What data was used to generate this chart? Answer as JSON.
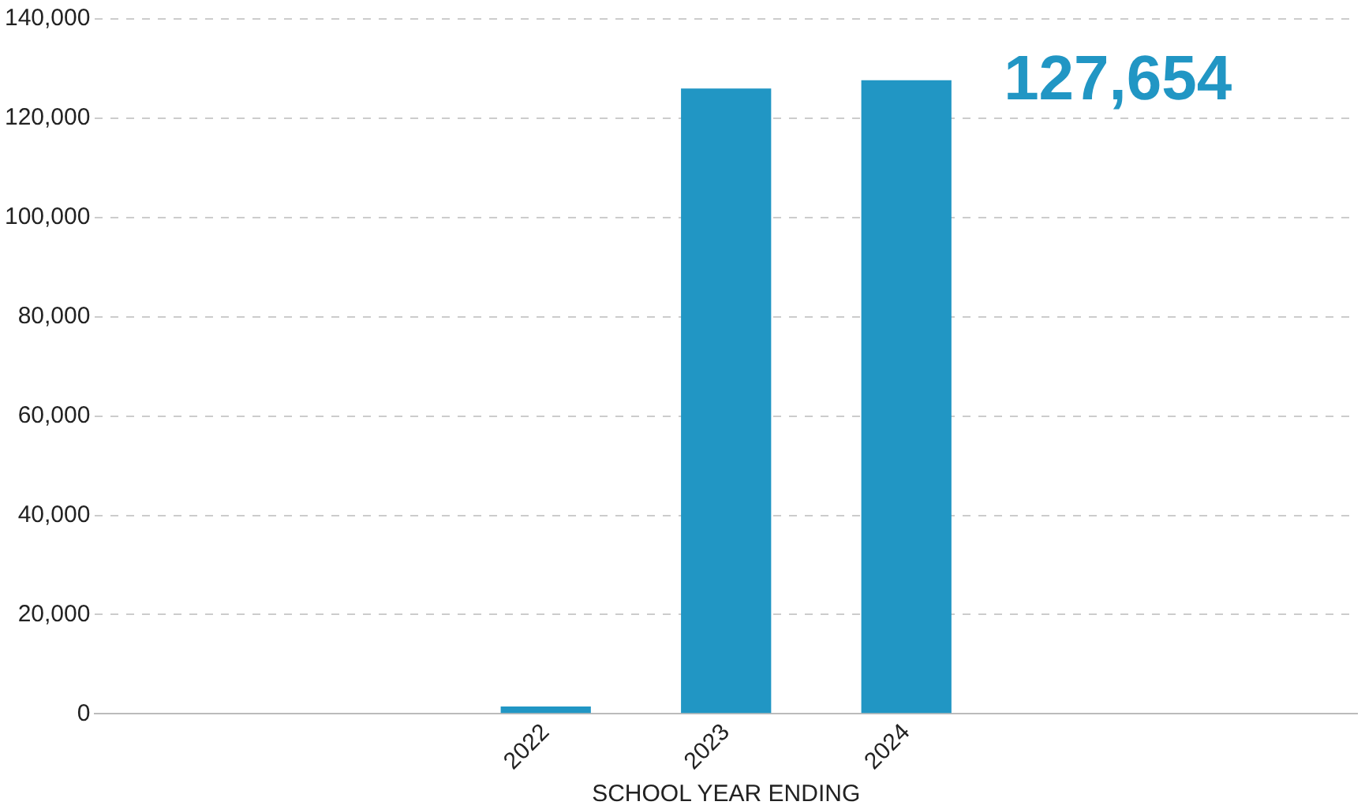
{
  "chart_data": {
    "type": "bar",
    "xlabel": "SCHOOL YEAR ENDING",
    "categories": [
      null,
      null,
      "2022",
      "2023",
      "2024",
      null,
      null
    ],
    "values": [
      null,
      null,
      1500,
      126000,
      127654,
      null,
      null
    ],
    "annotations": [
      "127,654"
    ],
    "color": "#2196c4",
    "ylim": [
      0,
      140000
    ],
    "yticks": [
      {
        "value": 0,
        "label": "0"
      },
      {
        "value": 20000,
        "label": "20,000"
      },
      {
        "value": 40000,
        "label": "40,000"
      },
      {
        "value": 60000,
        "label": "60,000"
      },
      {
        "value": 80000,
        "label": "80,000"
      },
      {
        "value": 100000,
        "label": "100,000"
      },
      {
        "value": 120000,
        "label": "120,000"
      },
      {
        "value": 140000,
        "label": "140,000"
      }
    ],
    "grid": "y",
    "legend": false
  }
}
